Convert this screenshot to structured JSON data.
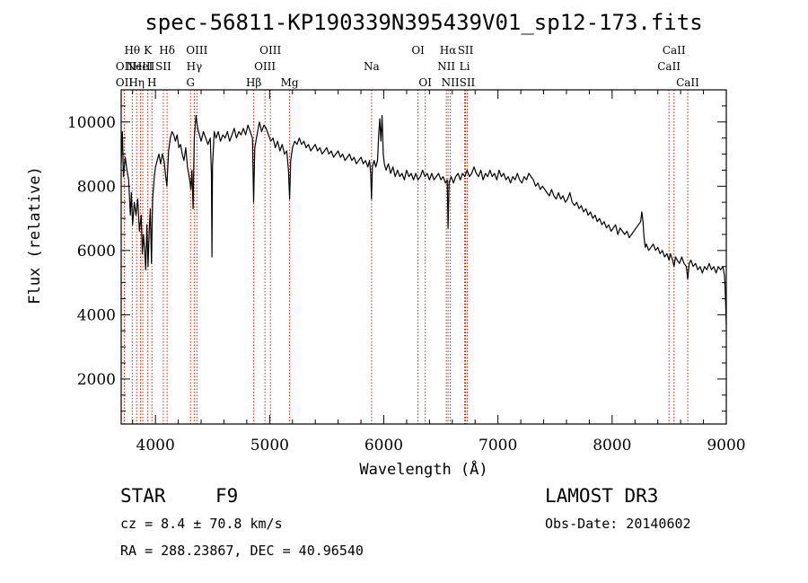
{
  "chart_data": {
    "type": "line",
    "title": "spec-56811-KP190339N395439V01_sp12-173.fits",
    "xlabel": "Wavelength (Å)",
    "ylabel": "Flux (relative)",
    "xlim": [
      3700,
      9000
    ],
    "ylim": [
      600,
      11000
    ],
    "xticks": [
      4000,
      5000,
      6000,
      7000,
      8000,
      9000
    ],
    "yticks": [
      2000,
      4000,
      6000,
      8000,
      10000
    ],
    "line_color": "#000000",
    "marker_color": "#cc2200",
    "spectrum": [
      [
        3700,
        8700
      ],
      [
        3710,
        9700
      ],
      [
        3720,
        8300
      ],
      [
        3735,
        8900
      ],
      [
        3750,
        8500
      ],
      [
        3765,
        8200
      ],
      [
        3780,
        7100
      ],
      [
        3790,
        7800
      ],
      [
        3800,
        6800
      ],
      [
        3815,
        7500
      ],
      [
        3830,
        7100
      ],
      [
        3845,
        7600
      ],
      [
        3860,
        6600
      ],
      [
        3875,
        7100
      ],
      [
        3885,
        5900
      ],
      [
        3895,
        6500
      ],
      [
        3905,
        6000
      ],
      [
        3915,
        5400
      ],
      [
        3925,
        6800
      ],
      [
        3935,
        5500
      ],
      [
        3945,
        6600
      ],
      [
        3955,
        7300
      ],
      [
        3965,
        5600
      ],
      [
        3975,
        7600
      ],
      [
        3990,
        8300
      ],
      [
        4000,
        8600
      ],
      [
        4015,
        8800
      ],
      [
        4030,
        9000
      ],
      [
        4045,
        8700
      ],
      [
        4060,
        9000
      ],
      [
        4075,
        8800
      ],
      [
        4090,
        8300
      ],
      [
        4100,
        8000
      ],
      [
        4115,
        9100
      ],
      [
        4130,
        9500
      ],
      [
        4145,
        9700
      ],
      [
        4160,
        9600
      ],
      [
        4175,
        9400
      ],
      [
        4190,
        9600
      ],
      [
        4205,
        9200
      ],
      [
        4220,
        9300
      ],
      [
        4235,
        9000
      ],
      [
        4250,
        8800
      ],
      [
        4265,
        9200
      ],
      [
        4280,
        8600
      ],
      [
        4300,
        8200
      ],
      [
        4310,
        7900
      ],
      [
        4320,
        8500
      ],
      [
        4330,
        7300
      ],
      [
        4340,
        9500
      ],
      [
        4355,
        10200
      ],
      [
        4370,
        9800
      ],
      [
        4385,
        9600
      ],
      [
        4400,
        9400
      ],
      [
        4420,
        9700
      ],
      [
        4440,
        9500
      ],
      [
        4460,
        9300
      ],
      [
        4480,
        9500
      ],
      [
        4490,
        8400
      ],
      [
        4495,
        5800
      ],
      [
        4500,
        8600
      ],
      [
        4515,
        9700
      ],
      [
        4530,
        9500
      ],
      [
        4550,
        9700
      ],
      [
        4570,
        9400
      ],
      [
        4590,
        9600
      ],
      [
        4610,
        9500
      ],
      [
        4630,
        9700
      ],
      [
        4650,
        9400
      ],
      [
        4670,
        9600
      ],
      [
        4690,
        9800
      ],
      [
        4710,
        9500
      ],
      [
        4730,
        9700
      ],
      [
        4750,
        9600
      ],
      [
        4770,
        9800
      ],
      [
        4790,
        9600
      ],
      [
        4810,
        9900
      ],
      [
        4830,
        9700
      ],
      [
        4850,
        9500
      ],
      [
        4860,
        7500
      ],
      [
        4870,
        9200
      ],
      [
        4890,
        9600
      ],
      [
        4910,
        10000
      ],
      [
        4930,
        9700
      ],
      [
        4950,
        9900
      ],
      [
        4970,
        9800
      ],
      [
        4990,
        9600
      ],
      [
        5010,
        9400
      ],
      [
        5030,
        9500
      ],
      [
        5050,
        9200
      ],
      [
        5070,
        9400
      ],
      [
        5090,
        9100
      ],
      [
        5110,
        9300
      ],
      [
        5130,
        9000
      ],
      [
        5150,
        9100
      ],
      [
        5165,
        8500
      ],
      [
        5175,
        7600
      ],
      [
        5185,
        8800
      ],
      [
        5200,
        9200
      ],
      [
        5220,
        9400
      ],
      [
        5240,
        9300
      ],
      [
        5260,
        9500
      ],
      [
        5280,
        9300
      ],
      [
        5300,
        9400
      ],
      [
        5320,
        9200
      ],
      [
        5340,
        9300
      ],
      [
        5360,
        9100
      ],
      [
        5380,
        9200
      ],
      [
        5400,
        9300
      ],
      [
        5420,
        9100
      ],
      [
        5440,
        9200
      ],
      [
        5460,
        9000
      ],
      [
        5480,
        9100
      ],
      [
        5500,
        9200
      ],
      [
        5520,
        9000
      ],
      [
        5540,
        9100
      ],
      [
        5560,
        8900
      ],
      [
        5580,
        9000
      ],
      [
        5600,
        9100
      ],
      [
        5620,
        8900
      ],
      [
        5640,
        9000
      ],
      [
        5660,
        8800
      ],
      [
        5680,
        8900
      ],
      [
        5700,
        9000
      ],
      [
        5720,
        8800
      ],
      [
        5740,
        8900
      ],
      [
        5760,
        8700
      ],
      [
        5780,
        8800
      ],
      [
        5800,
        8900
      ],
      [
        5820,
        8700
      ],
      [
        5840,
        8800
      ],
      [
        5860,
        8600
      ],
      [
        5875,
        8800
      ],
      [
        5885,
        8400
      ],
      [
        5892,
        7600
      ],
      [
        5900,
        8600
      ],
      [
        5915,
        8800
      ],
      [
        5930,
        8600
      ],
      [
        5945,
        8800
      ],
      [
        5955,
        9600
      ],
      [
        5965,
        10100
      ],
      [
        5975,
        9400
      ],
      [
        5985,
        10200
      ],
      [
        5995,
        9000
      ],
      [
        6005,
        8700
      ],
      [
        6020,
        8500
      ],
      [
        6040,
        8700
      ],
      [
        6060,
        8400
      ],
      [
        6080,
        8600
      ],
      [
        6100,
        8300
      ],
      [
        6120,
        8500
      ],
      [
        6140,
        8300
      ],
      [
        6160,
        8400
      ],
      [
        6180,
        8200
      ],
      [
        6200,
        8500
      ],
      [
        6220,
        8300
      ],
      [
        6240,
        8400
      ],
      [
        6260,
        8200
      ],
      [
        6280,
        8400
      ],
      [
        6300,
        8200
      ],
      [
        6320,
        8300
      ],
      [
        6340,
        8500
      ],
      [
        6360,
        8300
      ],
      [
        6380,
        8400
      ],
      [
        6400,
        8200
      ],
      [
        6420,
        8400
      ],
      [
        6440,
        8200
      ],
      [
        6460,
        8300
      ],
      [
        6480,
        8400
      ],
      [
        6500,
        8200
      ],
      [
        6520,
        8300
      ],
      [
        6540,
        8100
      ],
      [
        6555,
        8200
      ],
      [
        6563,
        6700
      ],
      [
        6572,
        8100
      ],
      [
        6590,
        8300
      ],
      [
        6610,
        8100
      ],
      [
        6630,
        8300
      ],
      [
        6650,
        8400
      ],
      [
        6670,
        8200
      ],
      [
        6690,
        8400
      ],
      [
        6710,
        8300
      ],
      [
        6730,
        8500
      ],
      [
        6750,
        8300
      ],
      [
        6770,
        8400
      ],
      [
        6790,
        8600
      ],
      [
        6810,
        8400
      ],
      [
        6830,
        8300
      ],
      [
        6850,
        8500
      ],
      [
        6870,
        8200
      ],
      [
        6890,
        8400
      ],
      [
        6910,
        8300
      ],
      [
        6930,
        8500
      ],
      [
        6950,
        8300
      ],
      [
        6970,
        8400
      ],
      [
        6990,
        8200
      ],
      [
        7010,
        8500
      ],
      [
        7030,
        8300
      ],
      [
        7050,
        8400
      ],
      [
        7070,
        8200
      ],
      [
        7090,
        8300
      ],
      [
        7110,
        8100
      ],
      [
        7130,
        8300
      ],
      [
        7150,
        8200
      ],
      [
        7170,
        8400
      ],
      [
        7190,
        8200
      ],
      [
        7210,
        8100
      ],
      [
        7230,
        8300
      ],
      [
        7250,
        8200
      ],
      [
        7270,
        8400
      ],
      [
        7290,
        8300
      ],
      [
        7310,
        8200
      ],
      [
        7330,
        8000
      ],
      [
        7350,
        8100
      ],
      [
        7370,
        7900
      ],
      [
        7390,
        8000
      ],
      [
        7410,
        7900
      ],
      [
        7430,
        7800
      ],
      [
        7450,
        7700
      ],
      [
        7470,
        7900
      ],
      [
        7490,
        7700
      ],
      [
        7510,
        7600
      ],
      [
        7530,
        7800
      ],
      [
        7550,
        7600
      ],
      [
        7570,
        7700
      ],
      [
        7590,
        7500
      ],
      [
        7610,
        7600
      ],
      [
        7630,
        7800
      ],
      [
        7650,
        7500
      ],
      [
        7670,
        7400
      ],
      [
        7690,
        7500
      ],
      [
        7710,
        7300
      ],
      [
        7730,
        7400
      ],
      [
        7750,
        7200
      ],
      [
        7770,
        7300
      ],
      [
        7790,
        7100
      ],
      [
        7810,
        7200
      ],
      [
        7830,
        7000
      ],
      [
        7850,
        7100
      ],
      [
        7870,
        6900
      ],
      [
        7890,
        7000
      ],
      [
        7910,
        6800
      ],
      [
        7930,
        6900
      ],
      [
        7950,
        6700
      ],
      [
        7970,
        6800
      ],
      [
        7990,
        6600
      ],
      [
        8010,
        6700
      ],
      [
        8030,
        6800
      ],
      [
        8050,
        6500
      ],
      [
        8070,
        6700
      ],
      [
        8090,
        6600
      ],
      [
        8110,
        6500
      ],
      [
        8130,
        6600
      ],
      [
        8150,
        6400
      ],
      [
        8170,
        6500
      ],
      [
        8190,
        6600
      ],
      [
        8210,
        6700
      ],
      [
        8230,
        6800
      ],
      [
        8250,
        6900
      ],
      [
        8260,
        7200
      ],
      [
        8270,
        6900
      ],
      [
        8280,
        6400
      ],
      [
        8290,
        6100
      ],
      [
        8300,
        6200
      ],
      [
        8320,
        6000
      ],
      [
        8340,
        6100
      ],
      [
        8360,
        6200
      ],
      [
        8380,
        6000
      ],
      [
        8400,
        6100
      ],
      [
        8420,
        5900
      ],
      [
        8440,
        6000
      ],
      [
        8460,
        5800
      ],
      [
        8480,
        5900
      ],
      [
        8498,
        5700
      ],
      [
        8510,
        5900
      ],
      [
        8530,
        5700
      ],
      [
        8542,
        5500
      ],
      [
        8555,
        5800
      ],
      [
        8570,
        5700
      ],
      [
        8590,
        5600
      ],
      [
        8610,
        5800
      ],
      [
        8630,
        5600
      ],
      [
        8650,
        5500
      ],
      [
        8662,
        5100
      ],
      [
        8675,
        5600
      ],
      [
        8690,
        5700
      ],
      [
        8710,
        5500
      ],
      [
        8730,
        5600
      ],
      [
        8750,
        5400
      ],
      [
        8770,
        5500
      ],
      [
        8790,
        5300
      ],
      [
        8810,
        5500
      ],
      [
        8830,
        5400
      ],
      [
        8850,
        5600
      ],
      [
        8870,
        5400
      ],
      [
        8890,
        5500
      ],
      [
        8910,
        5300
      ],
      [
        8930,
        5500
      ],
      [
        8950,
        5400
      ],
      [
        8970,
        5500
      ],
      [
        8985,
        5200
      ],
      [
        8992,
        4600
      ],
      [
        9000,
        3700
      ]
    ],
    "line_markers": [
      {
        "w": 3797,
        "label": "Hθ",
        "row": 1
      },
      {
        "w": 3727,
        "label": "OII",
        "row": 2
      },
      {
        "w": 3727,
        "label": "OII",
        "row": 3
      },
      {
        "w": 3835,
        "label": "Hη",
        "row": 3
      },
      {
        "w": 3869,
        "label": "NeIII",
        "row": 2
      },
      {
        "w": 3933,
        "label": "K",
        "row": 1
      },
      {
        "w": 3969,
        "label": "H",
        "row": 3
      },
      {
        "w": 3889,
        "label": "HeI",
        "row": 2
      },
      {
        "w": 4069,
        "label": "SII",
        "row": 2
      },
      {
        "w": 4102,
        "label": "Hδ",
        "row": 1
      },
      {
        "w": 4307,
        "label": "G",
        "row": 3
      },
      {
        "w": 4340,
        "label": "Hγ",
        "row": 2
      },
      {
        "w": 4363,
        "label": "OIII",
        "row": 1
      },
      {
        "w": 4861,
        "label": "Hβ",
        "row": 3
      },
      {
        "w": 4959,
        "label": "OIII",
        "row": 2
      },
      {
        "w": 5007,
        "label": "OIII",
        "row": 1
      },
      {
        "w": 5175,
        "label": "Mg",
        "row": 3
      },
      {
        "w": 5893,
        "label": "Na",
        "row": 2
      },
      {
        "w": 6300,
        "label": "OI",
        "row": 1
      },
      {
        "w": 6363,
        "label": "OI",
        "row": 3
      },
      {
        "w": 6548,
        "label": "NII",
        "row": 2
      },
      {
        "w": 6563,
        "label": "Hα",
        "row": 1
      },
      {
        "w": 6583,
        "label": "NII",
        "row": 3
      },
      {
        "w": 6708,
        "label": "Li",
        "row": 2
      },
      {
        "w": 6716,
        "label": "SII",
        "row": 1
      },
      {
        "w": 6731,
        "label": "SII",
        "row": 3
      },
      {
        "w": 8498,
        "label": "CaII",
        "row": 2
      },
      {
        "w": 8542,
        "label": "CaII",
        "row": 1
      },
      {
        "w": 8662,
        "label": "CaII",
        "row": 3
      }
    ]
  },
  "info": {
    "object_class": "STAR",
    "subclass": "F9",
    "survey": "LAMOST DR3",
    "cz": "cz = 8.4 ± 70.8 km/s",
    "obs_date": "Obs-Date: 20140602",
    "coords": "RA = 288.23867, DEC =  40.96540"
  }
}
